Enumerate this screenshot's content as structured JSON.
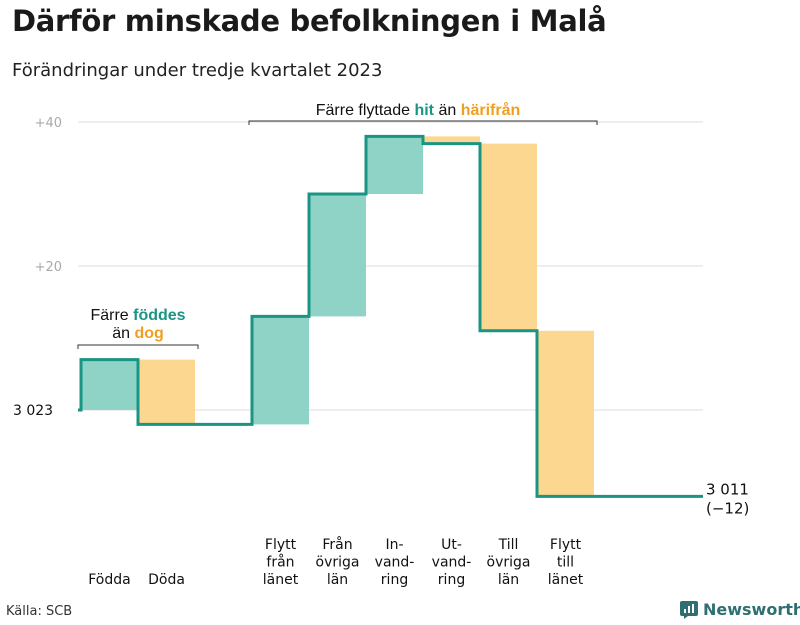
{
  "title": "Därför minskade befolkningen i Malå",
  "subtitle": "Förändringar under tredje kvartalet 2023",
  "source": "Källa: SCB",
  "brand": "Newsworthy",
  "colors": {
    "positive": "#8fd3c7",
    "negative": "#fbd78f",
    "line": "#1a9483",
    "accent_teal": "#1a9483",
    "accent_orange": "#f0a020",
    "grid": "#dddddd"
  },
  "chart_data": {
    "type": "waterfall",
    "start_value": 3023,
    "start_label": "3  023",
    "end_value": 3011,
    "end_label": "3 011",
    "end_change_label": "(−12)",
    "y_ticks": [
      {
        "value": 40,
        "label": "+40"
      },
      {
        "value": 20,
        "label": "+20"
      }
    ],
    "steps": [
      {
        "label": [
          "Födda"
        ],
        "change": 7
      },
      {
        "label": [
          "Döda"
        ],
        "change": -9
      },
      {
        "label": [
          "Flytt",
          "från",
          "länet"
        ],
        "change": 15
      },
      {
        "label": [
          "Från",
          "övriga",
          "län"
        ],
        "change": 17
      },
      {
        "label": [
          "In-",
          "vand-",
          "ring"
        ],
        "change": 8
      },
      {
        "label": [
          "Ut-",
          "vand-",
          "ring"
        ],
        "change": -1
      },
      {
        "label": [
          "Till",
          "övriga",
          "län"
        ],
        "change": -26
      },
      {
        "label": [
          "Flytt",
          "till",
          "länet"
        ],
        "change": -23
      }
    ],
    "annotations": [
      {
        "parts": [
          {
            "text": "Färre",
            "color": "#111111",
            "bold": false
          },
          {
            "text": "föddes",
            "color": "#1a9483",
            "bold": true
          }
        ],
        "parts2": [
          {
            "text": "än",
            "color": "#111111",
            "bold": false
          },
          {
            "text": "dog",
            "color": "#f0a020",
            "bold": true
          }
        ],
        "from_step": 0,
        "to_step": 1
      },
      {
        "parts": [
          {
            "text": "Färre flyttade",
            "color": "#111111",
            "bold": false
          },
          {
            "text": "hit",
            "color": "#1a9483",
            "bold": true
          },
          {
            "text": "än",
            "color": "#111111",
            "bold": false
          },
          {
            "text": "härifrån",
            "color": "#f0a020",
            "bold": true
          }
        ],
        "from_step": 2,
        "to_step": 7
      }
    ]
  }
}
